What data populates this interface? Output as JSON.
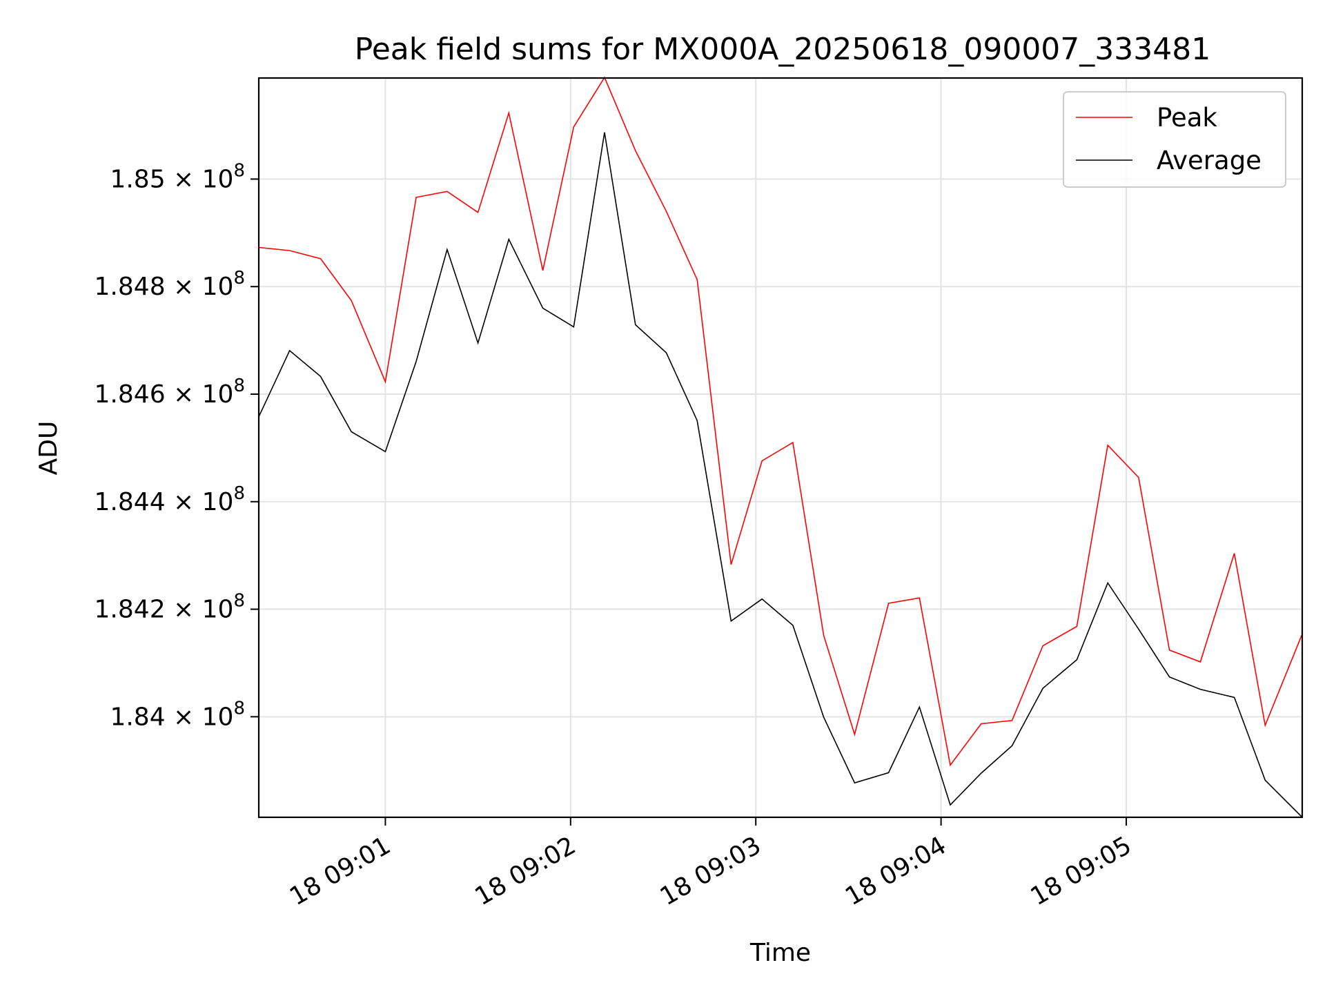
{
  "chart_data": {
    "type": "line",
    "title": "Peak field sums for MX000A_20250618_090007_333481",
    "xlabel": "Time",
    "ylabel": "ADU",
    "x_tick_labels": [
      "18 09:01",
      "18 09:02",
      "18 09:03",
      "18 09:04",
      "18 09:05"
    ],
    "x_ticks": [
      "2025-06-18 09:01:00",
      "2025-06-18 09:02:00",
      "2025-06-18 09:03:00",
      "2025-06-18 09:04:00",
      "2025-06-18 09:05:00"
    ],
    "xlim": [
      "2025-06-18 09:00:19",
      "2025-06-18 09:05:57"
    ],
    "y_tick_labels": [
      "1.84",
      "1.842",
      "1.844",
      "1.846",
      "1.848",
      "1.85"
    ],
    "y_tick_mult": "× 10",
    "y_tick_exp": "8",
    "y_ticks": [
      184000000,
      184200000,
      184400000,
      184600000,
      184800000,
      185000000
    ],
    "ylim": [
      183813000,
      185188000
    ],
    "grid": true,
    "legend_position": "top-right",
    "x": [
      "2025-06-18 09:00:19",
      "2025-06-18 09:00:29",
      "2025-06-18 09:00:39",
      "2025-06-18 09:00:49",
      "2025-06-18 09:01:00",
      "2025-06-18 09:01:10",
      "2025-06-18 09:01:20",
      "2025-06-18 09:01:30",
      "2025-06-18 09:01:40",
      "2025-06-18 09:01:51",
      "2025-06-18 09:02:01",
      "2025-06-18 09:02:11",
      "2025-06-18 09:02:21",
      "2025-06-18 09:02:31",
      "2025-06-18 09:02:41",
      "2025-06-18 09:02:52",
      "2025-06-18 09:03:02",
      "2025-06-18 09:03:12",
      "2025-06-18 09:03:22",
      "2025-06-18 09:03:32",
      "2025-06-18 09:03:43",
      "2025-06-18 09:03:53",
      "2025-06-18 09:04:03",
      "2025-06-18 09:04:13",
      "2025-06-18 09:04:23",
      "2025-06-18 09:04:33",
      "2025-06-18 09:04:44",
      "2025-06-18 09:04:54",
      "2025-06-18 09:05:04",
      "2025-06-18 09:05:14",
      "2025-06-18 09:05:24",
      "2025-06-18 09:05:35",
      "2025-06-18 09:05:45",
      "2025-06-18 09:05:57"
    ],
    "series": [
      {
        "name": "Peak",
        "color": "#ff0000",
        "values": [
          184873000,
          184867000,
          184852000,
          184774000,
          184623000,
          184966000,
          184977000,
          184938000,
          185123000,
          184830000,
          185097000,
          185189000,
          185053000,
          184940000,
          184813000,
          184283000,
          184476000,
          184510000,
          184151000,
          183967000,
          184211000,
          184221000,
          183910000,
          183987000,
          183993000,
          184132000,
          184168000,
          184505000,
          184445000,
          184124000,
          184102000,
          184304000,
          183984000,
          184154000
        ]
      },
      {
        "name": "Average",
        "color": "#000000",
        "values": [
          184558000,
          184681000,
          184633000,
          184530000,
          184493000,
          184661000,
          184869000,
          184695000,
          184888000,
          184760000,
          184725000,
          185087000,
          184729000,
          184677000,
          184551000,
          184178000,
          184219000,
          184170000,
          183999000,
          183877000,
          183896000,
          184018000,
          183836000,
          183895000,
          183946000,
          184053000,
          184106000,
          184249000,
          184163000,
          184074000,
          184051000,
          184036000,
          183882000,
          183813000
        ]
      }
    ]
  }
}
